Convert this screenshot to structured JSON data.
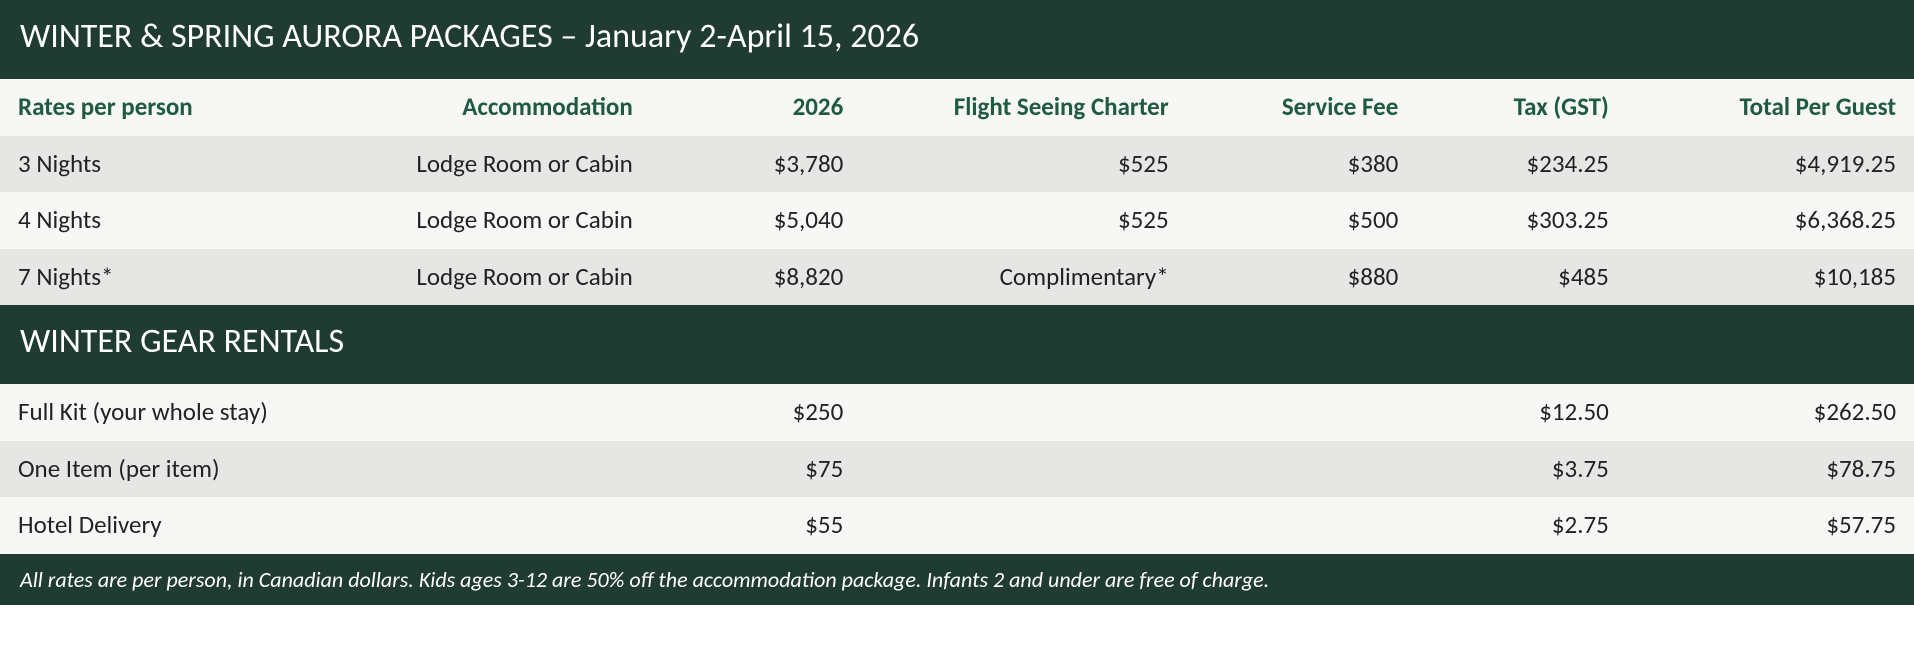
{
  "colors": {
    "header_bg": "#1f3b32",
    "header_text": "#ffffff",
    "th_bg": "#f7f7f5",
    "th_text": "#1f5a44",
    "row_odd": "#e6e6e4",
    "row_even": "#f7f7f5",
    "body_text": "#222222"
  },
  "typography": {
    "title_fontsize": 34,
    "th_fontsize": 25,
    "td_fontsize": 25,
    "footer_fontsize": 22,
    "footer_italic": true
  },
  "columns": [
    {
      "key": "rates",
      "label": "Rates per person",
      "align": "left",
      "width_pct": 17
    },
    {
      "key": "accom",
      "label": "Accommodation",
      "align": "right",
      "width_pct": 17
    },
    {
      "key": "y2026",
      "label": "2026",
      "align": "right",
      "width_pct": 11
    },
    {
      "key": "flight",
      "label": "Flight Seeing Charter",
      "align": "right",
      "width_pct": 17
    },
    {
      "key": "svc",
      "label": "Service Fee",
      "align": "right",
      "width_pct": 12
    },
    {
      "key": "tax",
      "label": "Tax (GST)",
      "align": "right",
      "width_pct": 11
    },
    {
      "key": "total",
      "label": "Total Per Guest",
      "align": "right",
      "width_pct": 15
    }
  ],
  "section1": {
    "title": "WINTER & SPRING AURORA PACKAGES – January 2-April 15, 2026",
    "rows": [
      {
        "rates": "3 Nights",
        "accom": "Lodge Room or Cabin",
        "y2026": "$3,780",
        "flight": "$525",
        "svc": "$380",
        "tax": "$234.25",
        "total": "$4,919.25"
      },
      {
        "rates": "4 Nights",
        "accom": "Lodge Room or Cabin",
        "y2026": "$5,040",
        "flight": "$525",
        "svc": "$500",
        "tax": "$303.25",
        "total": "$6,368.25"
      },
      {
        "rates": "7 Nights*",
        "accom": "Lodge Room or Cabin",
        "y2026": "$8,820",
        "flight": "Complimentary*",
        "svc": "$880",
        "tax": "$485",
        "total": "$10,185"
      }
    ]
  },
  "section2": {
    "title": "WINTER GEAR RENTALS",
    "rows": [
      {
        "rates": "Full Kit (your whole stay)",
        "accom": "",
        "y2026": "$250",
        "flight": "",
        "svc": "",
        "tax": "$12.50",
        "total": "$262.50"
      },
      {
        "rates": "One Item (per item)",
        "accom": "",
        "y2026": "$75",
        "flight": "",
        "svc": "",
        "tax": "$3.75",
        "total": "$78.75"
      },
      {
        "rates": "Hotel Delivery",
        "accom": "",
        "y2026": "$55",
        "flight": "",
        "svc": "",
        "tax": "$2.75",
        "total": "$57.75"
      }
    ]
  },
  "footer": "All rates are per person, in Canadian dollars. Kids ages 3-12 are 50% off the accommodation package. Infants 2 and under are free of charge."
}
